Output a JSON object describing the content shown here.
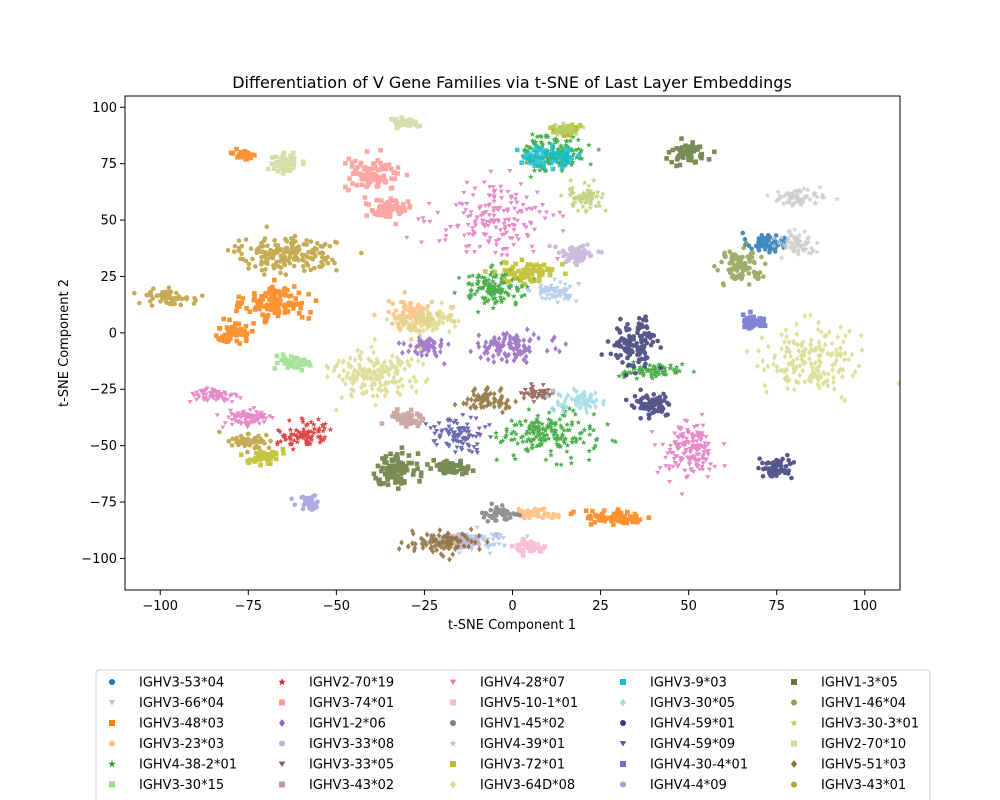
{
  "chart_data": {
    "type": "scatter",
    "title": "Differentiation of V Gene Families via t-SNE of Last Layer Embeddings",
    "xlabel": "t-SNE Component 1",
    "ylabel": "t-SNE Component 2",
    "xlim": [
      -110,
      110
    ],
    "ylim": [
      -114,
      105
    ],
    "xticks": [
      -100,
      -75,
      -50,
      -25,
      0,
      25,
      50,
      75,
      100
    ],
    "yticks": [
      100,
      75,
      50,
      25,
      0,
      -25,
      -50,
      -75,
      -100
    ],
    "grid": false,
    "legend_placement": "bottom",
    "series": [
      {
        "name": "IGHV3-53*04",
        "color": "#1f77b4",
        "marker": "circle",
        "clusters": [
          [
            72,
            40,
            5,
            4
          ]
        ]
      },
      {
        "name": "IGHV3-66*04",
        "color": "#aec7e8",
        "marker": "tri-down",
        "clusters": [
          [
            12,
            18,
            6,
            4
          ],
          [
            -10,
            -92,
            8,
            4
          ]
        ]
      },
      {
        "name": "IGHV3-48*03",
        "color": "#ff7f0e",
        "marker": "square",
        "clusters": [
          [
            -67,
            13,
            8,
            7
          ],
          [
            -79,
            0,
            5,
            4
          ],
          [
            30,
            -82,
            9,
            3
          ],
          [
            -76,
            79,
            3,
            2
          ]
        ]
      },
      {
        "name": "IGHV3-23*03",
        "color": "#ffbb78",
        "marker": "circle",
        "clusters": [
          [
            -28,
            8,
            7,
            6
          ],
          [
            6,
            -80,
            6,
            2
          ]
        ]
      },
      {
        "name": "IGHV4-38-2*01",
        "color": "#2ca02c",
        "marker": "star",
        "clusters": [
          [
            12,
            80,
            8,
            8
          ],
          [
            -5,
            20,
            9,
            7
          ],
          [
            40,
            -17,
            8,
            3
          ],
          [
            10,
            -45,
            12,
            9
          ]
        ]
      },
      {
        "name": "IGHV3-30*15",
        "color": "#98df8a",
        "marker": "square",
        "clusters": [
          [
            -62,
            -13,
            4,
            3
          ]
        ]
      },
      {
        "name": "IGHV2-70*19",
        "color": "#d62728",
        "marker": "star",
        "clusters": [
          [
            -59,
            -45,
            7,
            5
          ]
        ]
      },
      {
        "name": "IGHV3-74*01",
        "color": "#ff9896",
        "marker": "square",
        "clusters": [
          [
            -40,
            70,
            7,
            6
          ],
          [
            -35,
            55,
            6,
            4
          ]
        ]
      },
      {
        "name": "IGHV1-2*06",
        "color": "#9467bd",
        "marker": "diamond",
        "clusters": [
          [
            0,
            -6,
            9,
            5
          ],
          [
            -25,
            -6,
            5,
            4
          ]
        ]
      },
      {
        "name": "IGHV3-33*08",
        "color": "#c5b0d5",
        "marker": "circle",
        "clusters": [
          [
            -15,
            -92,
            6,
            3
          ],
          [
            18,
            35,
            5,
            4
          ]
        ]
      },
      {
        "name": "IGHV3-33*05",
        "color": "#8c564b",
        "marker": "tri-down",
        "clusters": [
          [
            7,
            -27,
            5,
            3
          ]
        ]
      },
      {
        "name": "IGHV3-43*02",
        "color": "#c49c94",
        "marker": "square",
        "clusters": [
          [
            -30,
            -38,
            4,
            4
          ]
        ]
      },
      {
        "name": "IGHV4-28*07",
        "color": "#e377c2",
        "marker": "tri-down",
        "clusters": [
          [
            -85,
            -28,
            6,
            3
          ],
          [
            -75,
            -38,
            7,
            4
          ],
          [
            50,
            -52,
            7,
            11
          ],
          [
            -5,
            50,
            15,
            14
          ]
        ]
      },
      {
        "name": "IGHV5-10-1*01",
        "color": "#f7b6d2",
        "marker": "square",
        "clusters": [
          [
            5,
            -95,
            4,
            3
          ]
        ]
      },
      {
        "name": "IGHV1-45*02",
        "color": "#7f7f7f",
        "marker": "circle",
        "clusters": [
          [
            -3,
            -80,
            4,
            3
          ]
        ]
      },
      {
        "name": "IGHV4-39*01",
        "color": "#c7c7c7",
        "marker": "star",
        "clusters": [
          [
            80,
            60,
            7,
            3
          ],
          [
            80,
            40,
            5,
            5
          ]
        ]
      },
      {
        "name": "IGHV3-72*01",
        "color": "#bcbd22",
        "marker": "square",
        "clusters": [
          [
            5,
            27,
            7,
            4
          ],
          [
            -70,
            -55,
            4,
            3
          ],
          [
            15,
            90,
            4,
            2
          ]
        ]
      },
      {
        "name": "IGHV3-64D*08",
        "color": "#dbdb8d",
        "marker": "diamond",
        "clusters": [
          [
            -40,
            -18,
            11,
            10
          ],
          [
            85,
            -12,
            12,
            14
          ],
          [
            -25,
            5,
            7,
            5
          ]
        ]
      },
      {
        "name": "IGHV3-9*03",
        "color": "#17becf",
        "marker": "square",
        "clusters": [
          [
            10,
            78,
            8,
            4
          ]
        ]
      },
      {
        "name": "IGHV3-30*05",
        "color": "#9edae5",
        "marker": "diamond",
        "clusters": [
          [
            18,
            -30,
            6,
            4
          ]
        ]
      },
      {
        "name": "IGHV4-59*01",
        "color": "#393b79",
        "marker": "circle",
        "clusters": [
          [
            35,
            -5,
            6,
            9
          ],
          [
            75,
            -60,
            5,
            4
          ],
          [
            40,
            -32,
            5,
            5
          ]
        ]
      },
      {
        "name": "IGHV4-59*09",
        "color": "#5254a3",
        "marker": "tri-down",
        "clusters": [
          [
            -15,
            -45,
            7,
            6
          ]
        ]
      },
      {
        "name": "IGHV4-30-4*01",
        "color": "#6b6ecf",
        "marker": "square",
        "clusters": [
          [
            68,
            5,
            3,
            3
          ]
        ]
      },
      {
        "name": "IGHV4-4*09",
        "color": "#9c9ede",
        "marker": "circle",
        "clusters": [
          [
            -58,
            -75,
            3,
            3
          ]
        ]
      },
      {
        "name": "IGHV1-3*05",
        "color": "#637939",
        "marker": "square",
        "clusters": [
          [
            50,
            80,
            5,
            4
          ],
          [
            -33,
            -60,
            5,
            7
          ],
          [
            -17,
            -60,
            6,
            3
          ]
        ]
      },
      {
        "name": "IGHV1-46*04",
        "color": "#8ca252",
        "marker": "circle",
        "clusters": [
          [
            65,
            30,
            6,
            6
          ]
        ]
      },
      {
        "name": "IGHV3-30-3*01",
        "color": "#b5cf6b",
        "marker": "star",
        "clusters": [
          [
            15,
            90,
            4,
            2
          ],
          [
            20,
            60,
            5,
            5
          ]
        ]
      },
      {
        "name": "IGHV2-70*10",
        "color": "#cedb9c",
        "marker": "square",
        "clusters": [
          [
            -30,
            93,
            4,
            2
          ],
          [
            -65,
            75,
            4,
            4
          ]
        ]
      },
      {
        "name": "IGHV5-51*03",
        "color": "#8c6d31",
        "marker": "diamond",
        "clusters": [
          [
            -20,
            -93,
            10,
            4
          ],
          [
            -7,
            -30,
            6,
            4
          ]
        ]
      },
      {
        "name": "IGHV3-43*01",
        "color": "#bd9e39",
        "marker": "circle",
        "clusters": [
          [
            -65,
            35,
            13,
            7
          ],
          [
            -97,
            16,
            7,
            3
          ],
          [
            -75,
            -48,
            5,
            3
          ]
        ]
      }
    ]
  }
}
